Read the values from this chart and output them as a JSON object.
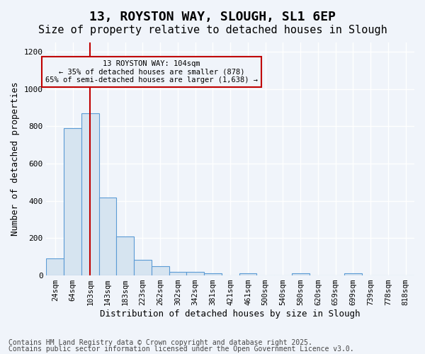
{
  "title_line1": "13, ROYSTON WAY, SLOUGH, SL1 6EP",
  "title_line2": "Size of property relative to detached houses in Slough",
  "xlabel": "Distribution of detached houses by size in Slough",
  "ylabel": "Number of detached properties",
  "bar_labels": [
    "24sqm",
    "64sqm",
    "103sqm",
    "143sqm",
    "183sqm",
    "223sqm",
    "262sqm",
    "302sqm",
    "342sqm",
    "381sqm",
    "421sqm",
    "461sqm",
    "500sqm",
    "540sqm",
    "580sqm",
    "620sqm",
    "659sqm",
    "699sqm",
    "739sqm",
    "778sqm",
    "818sqm"
  ],
  "bar_heights": [
    90,
    790,
    870,
    420,
    210,
    85,
    50,
    20,
    20,
    12,
    0,
    12,
    0,
    0,
    12,
    0,
    0,
    12,
    0,
    0,
    0
  ],
  "bar_color": "#d6e4f0",
  "bar_edgecolor": "#5b9bd5",
  "red_line_x": 2,
  "red_line_color": "#c00000",
  "annotation_text": "13 ROYSTON WAY: 104sqm\n← 35% of detached houses are smaller (878)\n65% of semi-detached houses are larger (1,638) →",
  "annotation_box_edgecolor": "#c00000",
  "ylim": [
    0,
    1250
  ],
  "yticks": [
    0,
    200,
    400,
    600,
    800,
    1000,
    1200
  ],
  "footnote1": "Contains HM Land Registry data © Crown copyright and database right 2025.",
  "footnote2": "Contains public sector information licensed under the Open Government Licence v3.0.",
  "bg_color": "#f0f4fa",
  "grid_color": "#ffffff",
  "title_fontsize": 13,
  "subtitle_fontsize": 11,
  "label_fontsize": 9,
  "tick_fontsize": 7.5,
  "footnote_fontsize": 7
}
